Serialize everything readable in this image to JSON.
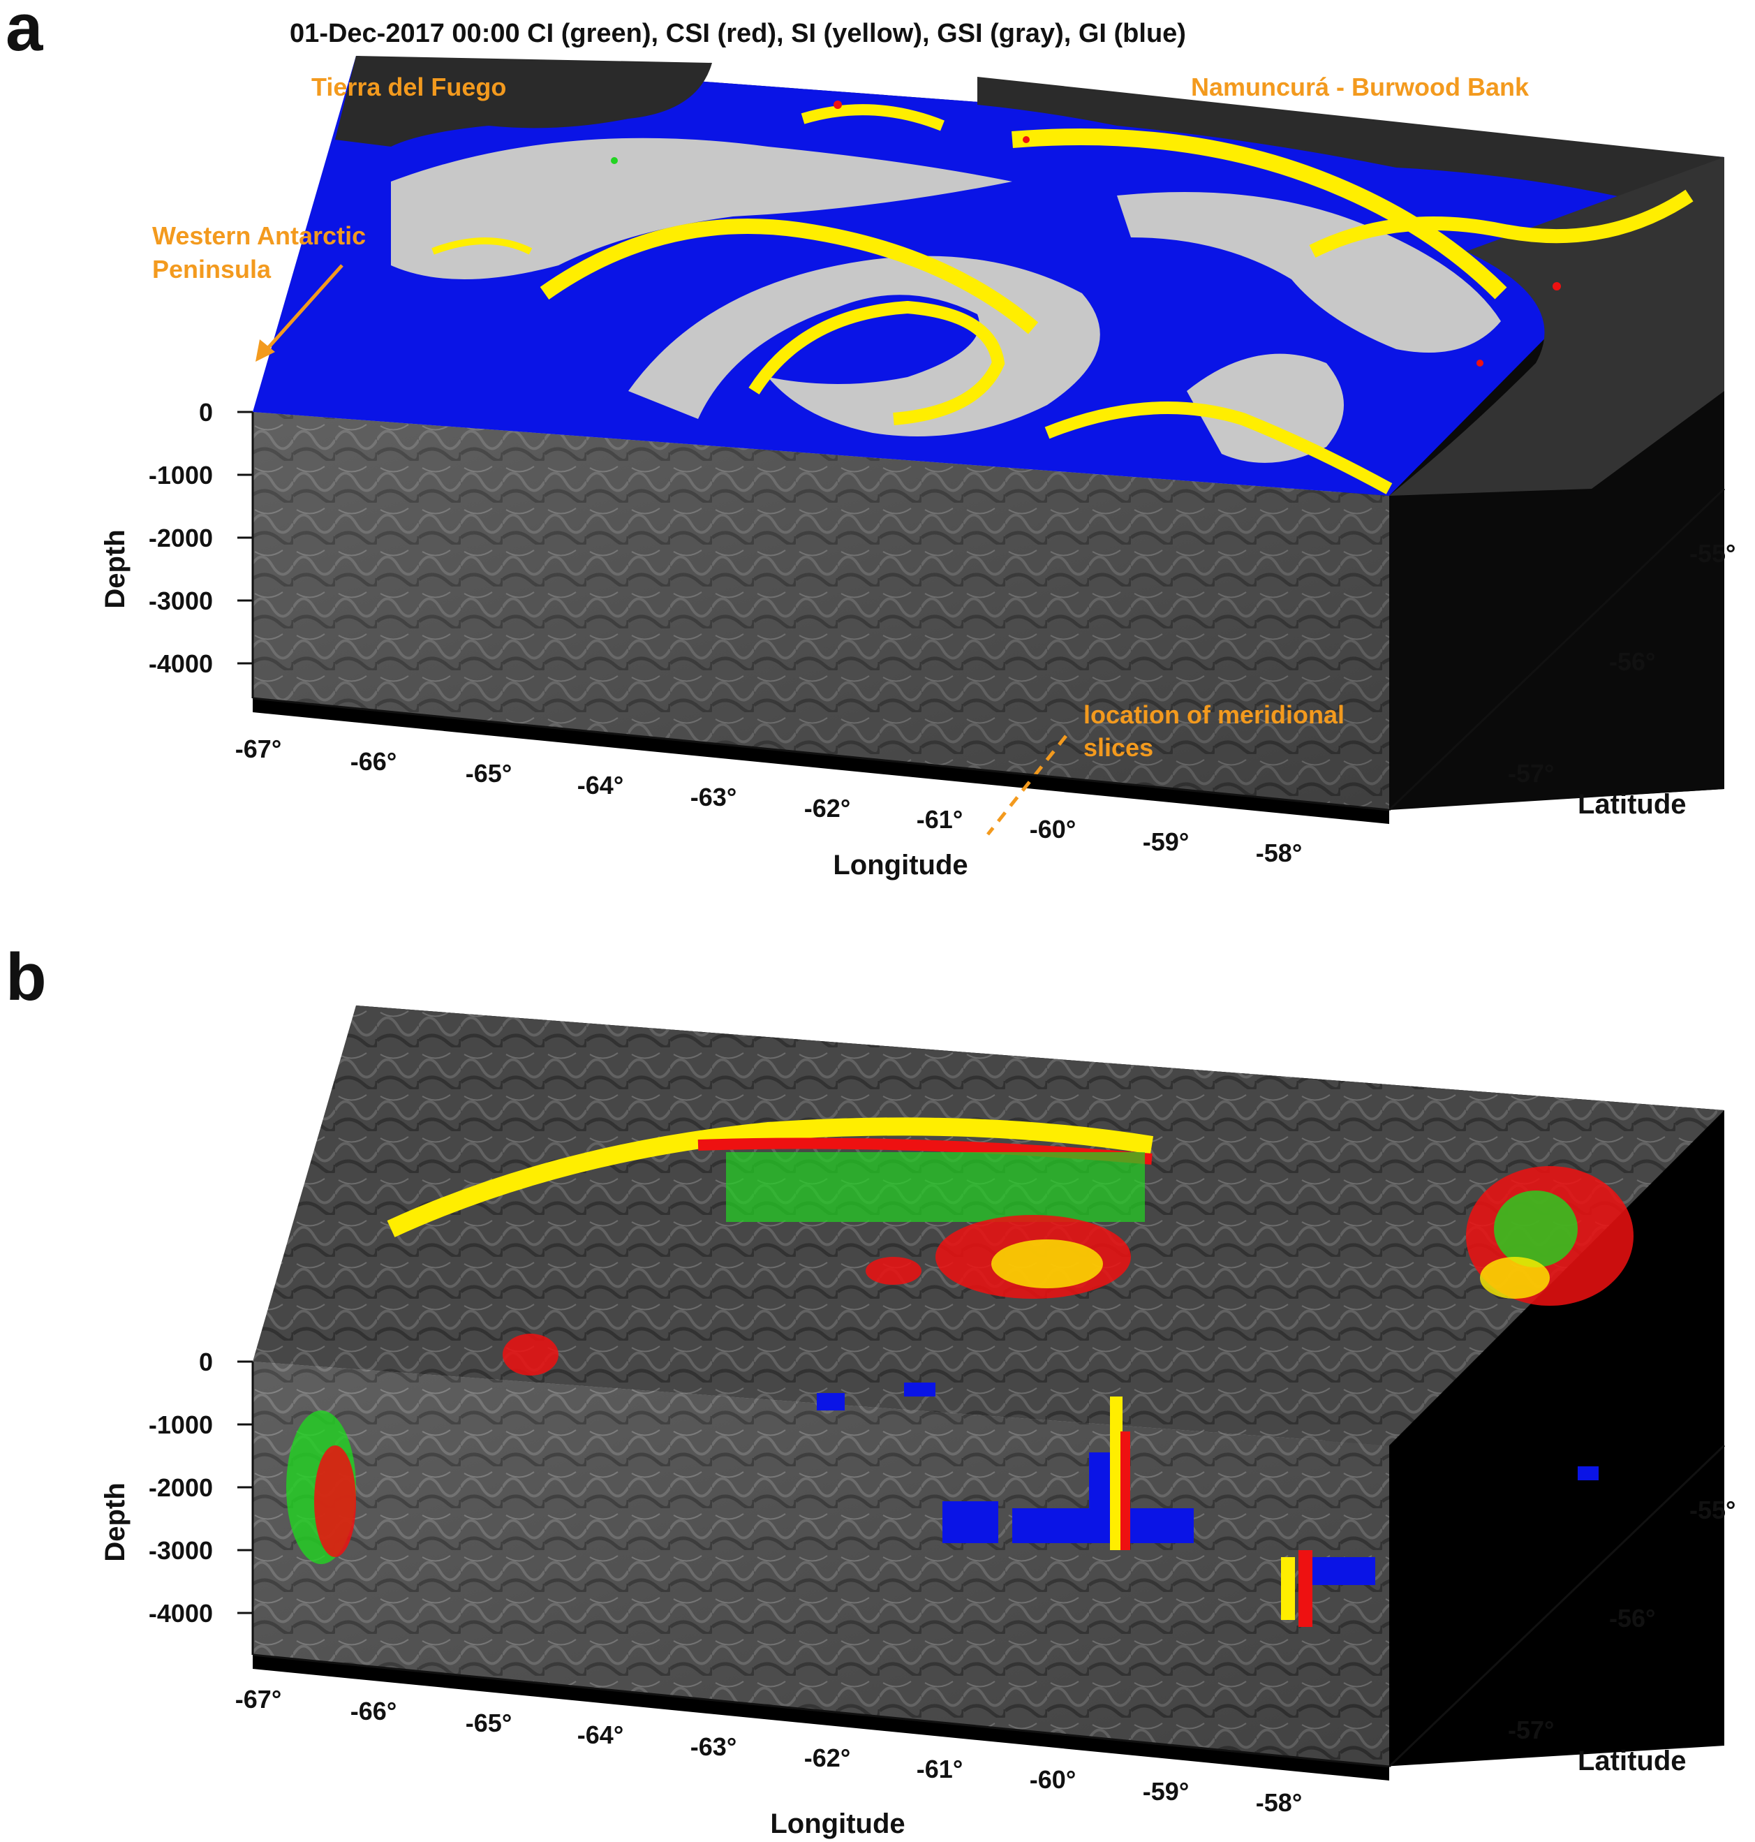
{
  "figure": {
    "title": "01-Dec-2017 00:00  CI (green), CSI (red), SI (yellow), GSI (gray), GI (blue)",
    "colors": {
      "CI": "#22d422",
      "CSI": "#ee1111",
      "SI": "#ffee00",
      "GSI": "#c8c8c8",
      "GI": "#0a14e6",
      "annotation": "#f39a1e"
    }
  },
  "panel_a": {
    "letter": "a",
    "annotations": {
      "tierra": "Tierra del Fuego",
      "namuncura": "Namuncurá - Burwood Bank",
      "wap_line1": "Western Antarctic",
      "wap_line2": "Peninsula",
      "slices_line1": "location of meridional",
      "slices_line2": "slices"
    },
    "depth_label": "Depth",
    "depth_ticks": [
      "0",
      "-1000",
      "-2000",
      "-3000",
      "-4000"
    ],
    "lon_label": "Longitude",
    "lon_ticks": [
      "-67°",
      "-66°",
      "-65°",
      "-64°",
      "-63°",
      "-62°",
      "-61°",
      "-60°",
      "-59°",
      "-58°"
    ],
    "lat_label": "Latitude",
    "lat_ticks": [
      "-55°",
      "-56°",
      "-57°"
    ]
  },
  "panel_b": {
    "letter": "b",
    "depth_label": "Depth",
    "depth_ticks": [
      "0",
      "-1000",
      "-2000",
      "-3000",
      "-4000"
    ],
    "lon_label": "Longitude",
    "lon_ticks": [
      "-67°",
      "-66°",
      "-65°",
      "-64°",
      "-63°",
      "-62°",
      "-61°",
      "-60°",
      "-59°",
      "-58°"
    ],
    "lat_label": "Latitude",
    "lat_ticks": [
      "-55°",
      "-56°",
      "-57°"
    ]
  }
}
